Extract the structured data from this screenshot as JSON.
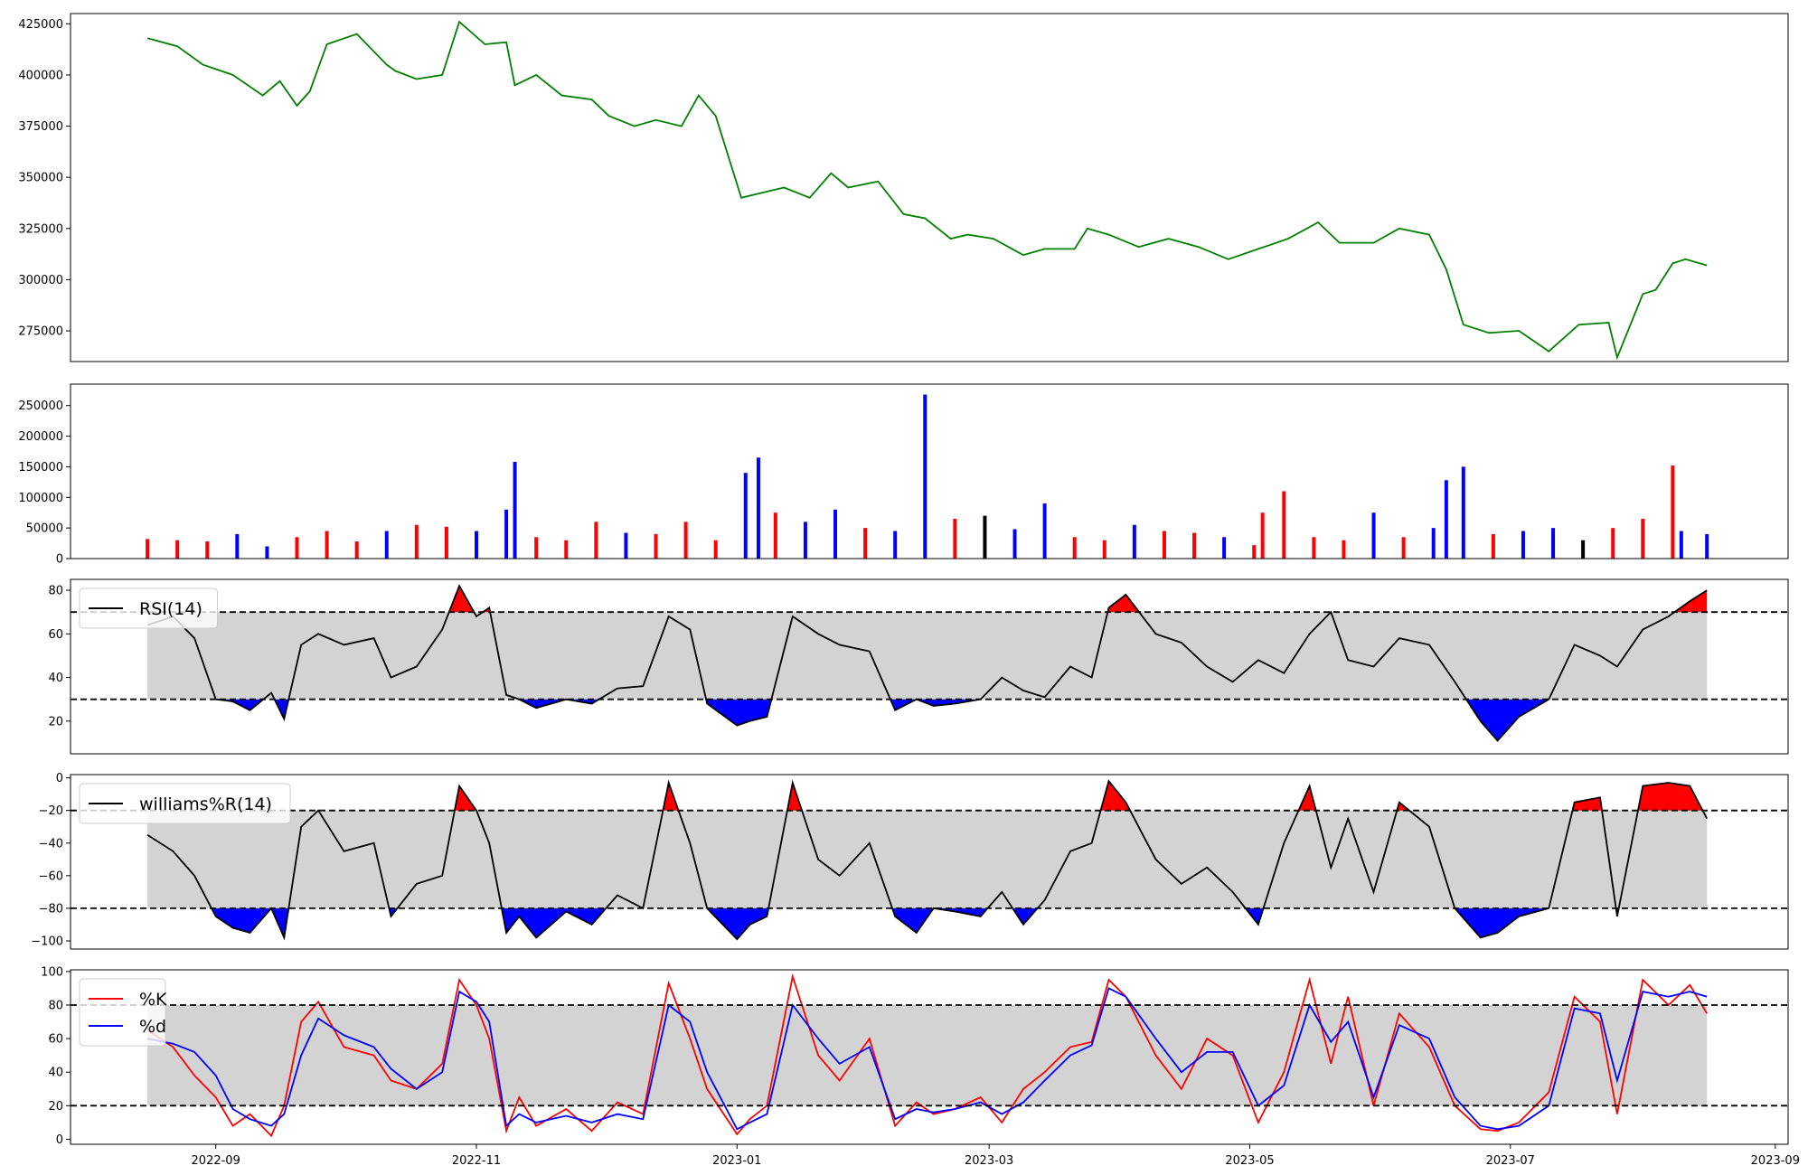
{
  "chart_data": [
    {
      "type": "line",
      "name": "price",
      "line_color": "#008000",
      "ylim": [
        260000,
        430000
      ],
      "yticks": [
        275000,
        300000,
        325000,
        350000,
        375000,
        400000,
        425000
      ],
      "ytick_labels": [
        "275000",
        "300000",
        "325000",
        "350000",
        "375000",
        "400000",
        "425000"
      ],
      "x": [
        "2022-08-16",
        "2022-08-23",
        "2022-08-29",
        "2022-09-05",
        "2022-09-12",
        "2022-09-16",
        "2022-09-20",
        "2022-09-23",
        "2022-09-27",
        "2022-10-04",
        "2022-10-11",
        "2022-10-13",
        "2022-10-18",
        "2022-10-24",
        "2022-10-28",
        "2022-11-03",
        "2022-11-08",
        "2022-11-10",
        "2022-11-15",
        "2022-11-21",
        "2022-11-28",
        "2022-12-02",
        "2022-12-08",
        "2022-12-13",
        "2022-12-19",
        "2022-12-23",
        "2022-12-27",
        "2023-01-02",
        "2023-01-06",
        "2023-01-12",
        "2023-01-18",
        "2023-01-23",
        "2023-01-27",
        "2023-02-03",
        "2023-02-09",
        "2023-02-14",
        "2023-02-20",
        "2023-02-24",
        "2023-03-02",
        "2023-03-09",
        "2023-03-14",
        "2023-03-21",
        "2023-03-24",
        "2023-03-29",
        "2023-04-05",
        "2023-04-12",
        "2023-04-19",
        "2023-04-26",
        "2023-05-03",
        "2023-05-10",
        "2023-05-17",
        "2023-05-22",
        "2023-05-30",
        "2023-06-05",
        "2023-06-12",
        "2023-06-16",
        "2023-06-20",
        "2023-06-26",
        "2023-07-03",
        "2023-07-10",
        "2023-07-17",
        "2023-07-24",
        "2023-07-26",
        "2023-08-01",
        "2023-08-04",
        "2023-08-08",
        "2023-08-11",
        "2023-08-16"
      ],
      "y": [
        418000,
        414000,
        405000,
        400000,
        390000,
        397000,
        385000,
        392000,
        415000,
        420000,
        405000,
        402000,
        398000,
        400000,
        426000,
        415000,
        416000,
        395000,
        400000,
        390000,
        388000,
        380000,
        375000,
        378000,
        375000,
        390000,
        380000,
        340000,
        342000,
        345000,
        340000,
        352000,
        345000,
        348000,
        332000,
        330000,
        320000,
        322000,
        320000,
        312000,
        315000,
        315000,
        325000,
        322000,
        316000,
        320000,
        316000,
        310000,
        315000,
        320000,
        328000,
        318000,
        318000,
        325000,
        322000,
        305000,
        278000,
        274000,
        275000,
        265000,
        278000,
        279000,
        262000,
        293000,
        295000,
        308000,
        310000,
        307000
      ]
    },
    {
      "type": "bar",
      "name": "volume",
      "ylim": [
        0,
        285000
      ],
      "yticks": [
        0,
        50000,
        100000,
        150000,
        200000,
        250000
      ],
      "ytick_labels": [
        "0",
        "50000",
        "100000",
        "150000",
        "200000",
        "250000"
      ],
      "up_color": "#ff0000",
      "down_color": "#0000ff",
      "flat_color": "#000000",
      "x": [
        "2022-08-16",
        "2022-08-23",
        "2022-08-30",
        "2022-09-06",
        "2022-09-13",
        "2022-09-20",
        "2022-09-27",
        "2022-10-04",
        "2022-10-11",
        "2022-10-18",
        "2022-10-25",
        "2022-11-01",
        "2022-11-08",
        "2022-11-10",
        "2022-11-15",
        "2022-11-22",
        "2022-11-29",
        "2022-12-06",
        "2022-12-13",
        "2022-12-20",
        "2022-12-27",
        "2023-01-03",
        "2023-01-06",
        "2023-01-10",
        "2023-01-17",
        "2023-01-24",
        "2023-01-31",
        "2023-02-07",
        "2023-02-14",
        "2023-02-21",
        "2023-02-28",
        "2023-03-07",
        "2023-03-14",
        "2023-03-21",
        "2023-03-28",
        "2023-04-04",
        "2023-04-11",
        "2023-04-18",
        "2023-04-25",
        "2023-05-02",
        "2023-05-04",
        "2023-05-09",
        "2023-05-16",
        "2023-05-23",
        "2023-05-30",
        "2023-06-06",
        "2023-06-13",
        "2023-06-16",
        "2023-06-20",
        "2023-06-27",
        "2023-07-04",
        "2023-07-11",
        "2023-07-18",
        "2023-07-25",
        "2023-08-01",
        "2023-08-08",
        "2023-08-10",
        "2023-08-16"
      ],
      "values": [
        32000,
        30000,
        28000,
        40000,
        20000,
        35000,
        45000,
        28000,
        45000,
        55000,
        52000,
        45000,
        80000,
        158000,
        35000,
        30000,
        60000,
        42000,
        40000,
        60000,
        30000,
        140000,
        165000,
        75000,
        60000,
        80000,
        50000,
        45000,
        268000,
        65000,
        70000,
        48000,
        90000,
        35000,
        30000,
        55000,
        45000,
        42000,
        35000,
        22000,
        75000,
        110000,
        35000,
        30000,
        75000,
        35000,
        50000,
        128000,
        150000,
        40000,
        45000,
        50000,
        30000,
        50000,
        65000,
        152000,
        45000,
        40000
      ],
      "direction": [
        "up",
        "up",
        "up",
        "down",
        "down",
        "up",
        "up",
        "up",
        "down",
        "up",
        "up",
        "down",
        "down",
        "down",
        "up",
        "up",
        "up",
        "down",
        "up",
        "up",
        "up",
        "down",
        "down",
        "up",
        "down",
        "down",
        "up",
        "down",
        "down",
        "up",
        "flat",
        "down",
        "down",
        "up",
        "up",
        "down",
        "up",
        "up",
        "down",
        "up",
        "up",
        "up",
        "up",
        "up",
        "down",
        "up",
        "down",
        "down",
        "down",
        "up",
        "down",
        "down",
        "flat",
        "up",
        "up",
        "up",
        "down",
        "down"
      ]
    },
    {
      "type": "line",
      "name": "rsi",
      "legend": "RSI(14)",
      "line_color": "#000000",
      "ylim": [
        5,
        85
      ],
      "yticks": [
        20,
        40,
        60,
        80
      ],
      "ytick_labels": [
        "20",
        "40",
        "60",
        "80"
      ],
      "upper": 70,
      "lower": 30,
      "band_color": "#d3d3d3",
      "overbought_fill": "#ff0000",
      "oversold_fill": "#0000ff",
      "x": [
        "2022-08-16",
        "2022-08-22",
        "2022-08-27",
        "2022-09-01",
        "2022-09-05",
        "2022-09-09",
        "2022-09-14",
        "2022-09-17",
        "2022-09-21",
        "2022-09-25",
        "2022-10-01",
        "2022-10-08",
        "2022-10-12",
        "2022-10-18",
        "2022-10-24",
        "2022-10-28",
        "2022-11-01",
        "2022-11-04",
        "2022-11-08",
        "2022-11-11",
        "2022-11-15",
        "2022-11-22",
        "2022-11-28",
        "2022-12-04",
        "2022-12-10",
        "2022-12-16",
        "2022-12-21",
        "2022-12-25",
        "2023-01-01",
        "2023-01-04",
        "2023-01-08",
        "2023-01-14",
        "2023-01-20",
        "2023-01-25",
        "2023-02-01",
        "2023-02-07",
        "2023-02-12",
        "2023-02-16",
        "2023-02-21",
        "2023-02-27",
        "2023-03-04",
        "2023-03-09",
        "2023-03-14",
        "2023-03-20",
        "2023-03-25",
        "2023-03-29",
        "2023-04-02",
        "2023-04-09",
        "2023-04-15",
        "2023-04-21",
        "2023-04-27",
        "2023-05-03",
        "2023-05-09",
        "2023-05-15",
        "2023-05-20",
        "2023-05-24",
        "2023-05-30",
        "2023-06-05",
        "2023-06-12",
        "2023-06-18",
        "2023-06-24",
        "2023-06-28",
        "2023-07-03",
        "2023-07-10",
        "2023-07-16",
        "2023-07-22",
        "2023-07-26",
        "2023-08-01",
        "2023-08-07",
        "2023-08-12",
        "2023-08-16"
      ],
      "y": [
        64,
        68,
        58,
        30,
        29,
        25,
        33,
        21,
        55,
        60,
        55,
        58,
        40,
        45,
        62,
        82,
        68,
        72,
        32,
        30,
        26,
        30,
        28,
        35,
        36,
        68,
        62,
        28,
        18,
        20,
        22,
        68,
        60,
        55,
        52,
        25,
        30,
        27,
        28,
        30,
        40,
        34,
        31,
        45,
        40,
        72,
        78,
        60,
        56,
        45,
        38,
        48,
        42,
        60,
        70,
        48,
        45,
        58,
        55,
        38,
        20,
        11,
        22,
        30,
        55,
        50,
        45,
        62,
        68,
        75,
        80
      ]
    },
    {
      "type": "line",
      "name": "williams",
      "legend": "williams%R(14)",
      "line_color": "#000000",
      "ylim": [
        -105,
        2
      ],
      "yticks": [
        -100,
        -80,
        -60,
        -40,
        -20,
        0
      ],
      "ytick_labels": [
        "−100",
        "−80",
        "−60",
        "−40",
        "−20",
        "0"
      ],
      "upper": -20,
      "lower": -80,
      "band_color": "#d3d3d3",
      "overbought_fill": "#ff0000",
      "oversold_fill": "#0000ff",
      "x": [
        "2022-08-16",
        "2022-08-22",
        "2022-08-27",
        "2022-09-01",
        "2022-09-05",
        "2022-09-09",
        "2022-09-14",
        "2022-09-17",
        "2022-09-21",
        "2022-09-25",
        "2022-10-01",
        "2022-10-08",
        "2022-10-12",
        "2022-10-18",
        "2022-10-24",
        "2022-10-28",
        "2022-11-01",
        "2022-11-04",
        "2022-11-08",
        "2022-11-11",
        "2022-11-15",
        "2022-11-22",
        "2022-11-28",
        "2022-12-04",
        "2022-12-10",
        "2022-12-16",
        "2022-12-21",
        "2022-12-25",
        "2023-01-01",
        "2023-01-04",
        "2023-01-08",
        "2023-01-14",
        "2023-01-20",
        "2023-01-25",
        "2023-02-01",
        "2023-02-07",
        "2023-02-12",
        "2023-02-16",
        "2023-02-21",
        "2023-02-27",
        "2023-03-04",
        "2023-03-09",
        "2023-03-14",
        "2023-03-20",
        "2023-03-25",
        "2023-03-29",
        "2023-04-02",
        "2023-04-09",
        "2023-04-15",
        "2023-04-21",
        "2023-04-27",
        "2023-05-03",
        "2023-05-09",
        "2023-05-15",
        "2023-05-20",
        "2023-05-24",
        "2023-05-30",
        "2023-06-05",
        "2023-06-12",
        "2023-06-18",
        "2023-06-24",
        "2023-06-28",
        "2023-07-03",
        "2023-07-10",
        "2023-07-16",
        "2023-07-22",
        "2023-07-26",
        "2023-08-01",
        "2023-08-07",
        "2023-08-12",
        "2023-08-16"
      ],
      "y": [
        -35,
        -45,
        -60,
        -85,
        -92,
        -95,
        -80,
        -98,
        -30,
        -20,
        -45,
        -40,
        -85,
        -65,
        -60,
        -5,
        -20,
        -40,
        -95,
        -85,
        -98,
        -82,
        -90,
        -72,
        -80,
        -3,
        -40,
        -80,
        -99,
        -90,
        -85,
        -3,
        -50,
        -60,
        -40,
        -85,
        -95,
        -80,
        -82,
        -85,
        -70,
        -90,
        -75,
        -45,
        -40,
        -2,
        -15,
        -50,
        -65,
        -55,
        -70,
        -90,
        -40,
        -5,
        -55,
        -25,
        -70,
        -15,
        -30,
        -80,
        -98,
        -95,
        -85,
        -80,
        -15,
        -12,
        -85,
        -5,
        -3,
        -5,
        -25
      ]
    },
    {
      "type": "line",
      "name": "stochastic",
      "ylim": [
        -3,
        101
      ],
      "yticks": [
        0,
        20,
        40,
        60,
        80,
        100
      ],
      "ytick_labels": [
        "0",
        "20",
        "40",
        "60",
        "80",
        "100"
      ],
      "upper": 80,
      "lower": 20,
      "band_color": "#d3d3d3",
      "x": [
        "2022-08-16",
        "2022-08-22",
        "2022-08-27",
        "2022-09-01",
        "2022-09-05",
        "2022-09-09",
        "2022-09-14",
        "2022-09-17",
        "2022-09-21",
        "2022-09-25",
        "2022-10-01",
        "2022-10-08",
        "2022-10-12",
        "2022-10-18",
        "2022-10-24",
        "2022-10-28",
        "2022-11-01",
        "2022-11-04",
        "2022-11-08",
        "2022-11-11",
        "2022-11-15",
        "2022-11-22",
        "2022-11-28",
        "2022-12-04",
        "2022-12-10",
        "2022-12-16",
        "2022-12-21",
        "2022-12-25",
        "2023-01-01",
        "2023-01-04",
        "2023-01-08",
        "2023-01-14",
        "2023-01-20",
        "2023-01-25",
        "2023-02-01",
        "2023-02-07",
        "2023-02-12",
        "2023-02-16",
        "2023-02-21",
        "2023-02-27",
        "2023-03-04",
        "2023-03-09",
        "2023-03-14",
        "2023-03-20",
        "2023-03-25",
        "2023-03-29",
        "2023-04-02",
        "2023-04-09",
        "2023-04-15",
        "2023-04-21",
        "2023-04-27",
        "2023-05-03",
        "2023-05-09",
        "2023-05-15",
        "2023-05-20",
        "2023-05-24",
        "2023-05-30",
        "2023-06-05",
        "2023-06-12",
        "2023-06-18",
        "2023-06-24",
        "2023-06-28",
        "2023-07-03",
        "2023-07-10",
        "2023-07-16",
        "2023-07-22",
        "2023-07-26",
        "2023-08-01",
        "2023-08-07",
        "2023-08-12",
        "2023-08-16"
      ],
      "series": [
        {
          "name": "%K",
          "color": "#ff0000",
          "values": [
            65,
            55,
            38,
            25,
            8,
            15,
            2,
            20,
            70,
            82,
            55,
            50,
            35,
            30,
            45,
            95,
            80,
            60,
            5,
            25,
            8,
            18,
            5,
            22,
            15,
            93,
            60,
            30,
            3,
            12,
            20,
            97,
            50,
            35,
            60,
            8,
            22,
            15,
            18,
            25,
            10,
            30,
            40,
            55,
            58,
            95,
            85,
            50,
            30,
            60,
            50,
            10,
            40,
            95,
            45,
            85,
            20,
            75,
            55,
            20,
            6,
            5,
            10,
            28,
            85,
            70,
            15,
            95,
            80,
            92,
            75
          ]
        },
        {
          "name": "%d",
          "color": "#0000ff",
          "values": [
            60,
            57,
            52,
            38,
            18,
            12,
            8,
            15,
            50,
            72,
            62,
            55,
            42,
            30,
            40,
            88,
            82,
            70,
            8,
            15,
            10,
            14,
            10,
            15,
            12,
            80,
            70,
            40,
            6,
            10,
            15,
            80,
            60,
            45,
            55,
            12,
            18,
            16,
            18,
            22,
            15,
            22,
            35,
            50,
            56,
            90,
            85,
            60,
            40,
            52,
            52,
            20,
            32,
            80,
            58,
            70,
            25,
            68,
            60,
            25,
            8,
            6,
            8,
            20,
            78,
            75,
            35,
            88,
            85,
            88,
            85
          ]
        }
      ]
    }
  ],
  "x_axis": {
    "min": "2022-07-29",
    "max": "2023-09-04",
    "ticks": [
      "2022-09-01",
      "2022-11-01",
      "2023-01-01",
      "2023-03-01",
      "2023-05-01",
      "2023-07-01",
      "2023-09-01"
    ],
    "tick_labels": [
      "2022-09",
      "2022-11",
      "2023-01",
      "2023-03",
      "2023-05",
      "2023-07",
      "2023-09"
    ]
  }
}
